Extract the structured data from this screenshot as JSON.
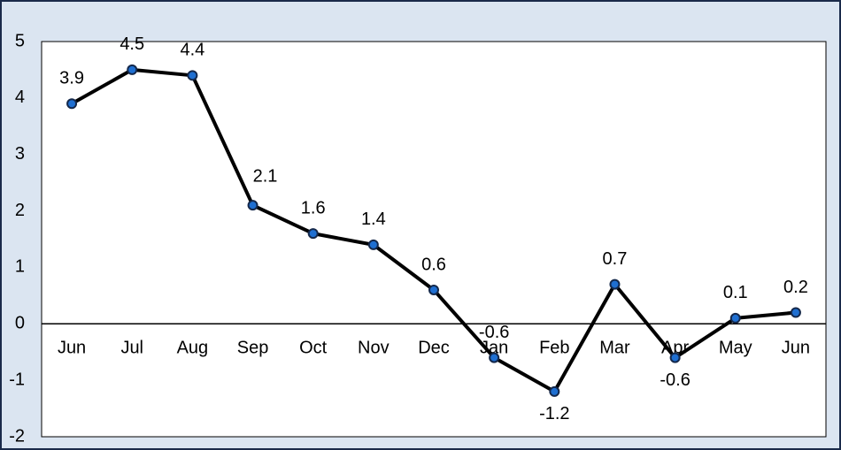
{
  "chart_data": {
    "type": "line",
    "categories": [
      "Jun",
      "Jul",
      "Aug",
      "Sep",
      "Oct",
      "Nov",
      "Dec",
      "Jan",
      "Feb",
      "Mar",
      "Apr",
      "May",
      "Jun"
    ],
    "values": [
      3.9,
      4.5,
      4.4,
      2.1,
      1.6,
      1.4,
      0.6,
      -0.6,
      -1.2,
      0.7,
      -0.6,
      0.1,
      0.2
    ],
    "color": "#000000",
    "marker_color": "#1f6fd1",
    "ylim": [
      -2,
      5
    ],
    "yticks": [
      -2,
      -1,
      0,
      1,
      2,
      3,
      4,
      5
    ],
    "grid": false
  }
}
